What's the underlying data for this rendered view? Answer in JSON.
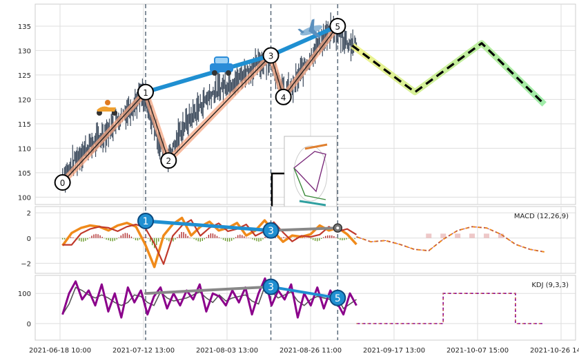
{
  "chart_data": {
    "type": "line",
    "x_tick_labels": [
      "2021-06-18 10:00",
      "2021-07-12 13:00",
      "2021-08-03 13:00",
      "2021-08-26 11:00",
      "2021-09-17 13:00",
      "2021-10-07 15:00",
      "2021-10-26 14:00"
    ],
    "price_panel": {
      "y_ticks": [
        100,
        105,
        110,
        115,
        120,
        125,
        130,
        135
      ],
      "ylim": [
        98.5,
        139.5
      ],
      "price_series": [
        104,
        106,
        108.5,
        110,
        111,
        112.5,
        114,
        116,
        117.5,
        119,
        121,
        117,
        112,
        108,
        110,
        114,
        116,
        118,
        120,
        121.5,
        122.5,
        123.5,
        124,
        125.5,
        126.5,
        127.5,
        128.5,
        125,
        121,
        122.5,
        125.5,
        128,
        131,
        132.5,
        134,
        133,
        131.5,
        131
      ],
      "pivots": [
        {
          "label": "0",
          "x": 0.6,
          "y": 103
        },
        {
          "label": "1",
          "x": 20.5,
          "y": 121.5
        },
        {
          "label": "2",
          "x": 26,
          "y": 107.5
        },
        {
          "label": "3",
          "x": 50.5,
          "y": 129
        },
        {
          "label": "4",
          "x": 53.5,
          "y": 120.5
        },
        {
          "label": "5",
          "x": 66.5,
          "y": 135
        }
      ],
      "forecast": [
        {
          "x": 70,
          "y": 131
        },
        {
          "x": 85,
          "y": 121.5
        },
        {
          "x": 101,
          "y": 131.5
        },
        {
          "x": 116,
          "y": 119
        }
      ],
      "trend_line": [
        {
          "x": 20.5,
          "y": 121.5
        },
        {
          "x": 50.5,
          "y": 129
        },
        {
          "x": 66.5,
          "y": 135
        }
      ],
      "icons": [
        "scooter-icon",
        "car-icon",
        "airplane-icon"
      ]
    },
    "macd_panel": {
      "title": "MACD (12,26,9)",
      "y_ticks": [
        -2,
        0,
        2
      ],
      "ylim": [
        -2.8,
        2.5
      ],
      "macd_series": [
        -0.6,
        0.4,
        0.8,
        1.0,
        0.9,
        0.6,
        1.0,
        1.2,
        0.9,
        -0.5,
        -2.3,
        0.2,
        1.1,
        1.6,
        0.2,
        0.9,
        1.3,
        0.6,
        0.8,
        1.2,
        0.2,
        0.6,
        1.4,
        0.5,
        -0.3,
        0.2,
        0.1,
        0.3,
        1.0,
        0.6,
        0.8,
        0.3,
        -0.5
      ],
      "forecast_series": [
        0.1,
        -0.3,
        -0.2,
        -0.5,
        -0.9,
        -1.0,
        -0.1,
        0.6,
        0.9,
        0.8,
        0.3,
        -0.5,
        -0.9,
        -1.1
      ],
      "pivots": [
        {
          "label": "1",
          "x": 20.5,
          "y": 1.35
        },
        {
          "label": "3",
          "x": 50.5,
          "y": 0.6
        }
      ],
      "end_marker": {
        "x": 66.5,
        "y": 0.8
      }
    },
    "kdj_panel": {
      "title": "KDJ (9,3,3)",
      "y_ticks": [
        0,
        100
      ],
      "ylim": [
        -55,
        160
      ],
      "kdj_series": [
        30,
        100,
        140,
        80,
        110,
        60,
        130,
        40,
        100,
        20,
        120,
        70,
        110,
        30,
        90,
        120,
        50,
        100,
        60,
        110,
        80,
        130,
        40,
        100,
        90,
        60,
        110,
        70,
        120,
        30,
        100,
        150,
        60,
        110,
        80,
        130,
        20,
        100,
        60,
        120,
        50,
        110,
        70,
        30,
        100,
        60
      ],
      "forecast_series": [
        0,
        0,
        0,
        0,
        0,
        0,
        100,
        100,
        100,
        100,
        100,
        0,
        0,
        0
      ],
      "pivots": [
        {
          "label": "3",
          "x": 50.5,
          "y": 122
        },
        {
          "label": "5",
          "x": 66.5,
          "y": 85
        }
      ]
    }
  }
}
